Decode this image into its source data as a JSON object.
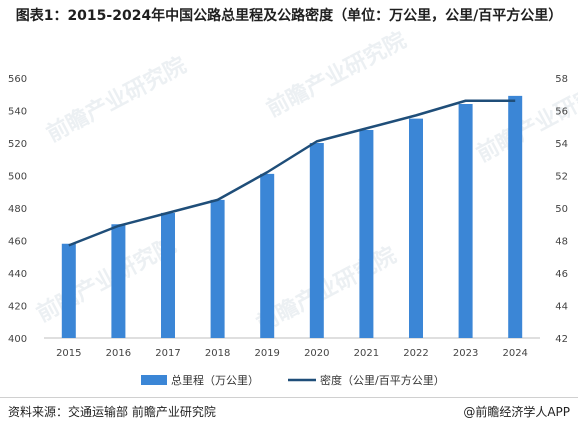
{
  "title": "图表1：2015-2024年中国公路总里程及公路密度（单位：万公里，公里/百平方公里）",
  "source": "资料来源：交通运输部 前瞻产业研究院",
  "brand": "@前瞻经济学人APP",
  "watermark": "前瞻产业研究院",
  "chart_data": {
    "type": "bar",
    "categories": [
      "2015",
      "2016",
      "2017",
      "2018",
      "2019",
      "2020",
      "2021",
      "2022",
      "2023",
      "2024"
    ],
    "series": [
      {
        "name": "总里程（万公里）",
        "type": "bar",
        "axis": "left",
        "color": "#3b86d6",
        "values": [
          458,
          470,
          477,
          485,
          501,
          520,
          528,
          535,
          544,
          549
        ]
      },
      {
        "name": "密度（公里/百平方公里）",
        "type": "line",
        "axis": "right",
        "color": "#1f4e79",
        "values": [
          47.7,
          48.9,
          49.7,
          50.5,
          52.2,
          54.1,
          54.9,
          55.7,
          56.6,
          56.6
        ]
      }
    ],
    "y_left": {
      "min": 400,
      "max": 560,
      "ticks": [
        400,
        420,
        440,
        460,
        480,
        500,
        520,
        540,
        560
      ]
    },
    "y_right": {
      "min": 42,
      "max": 58,
      "ticks": [
        42,
        44,
        46,
        48,
        50,
        52,
        54,
        56,
        58
      ]
    },
    "grid": false,
    "legend": "bottom"
  }
}
